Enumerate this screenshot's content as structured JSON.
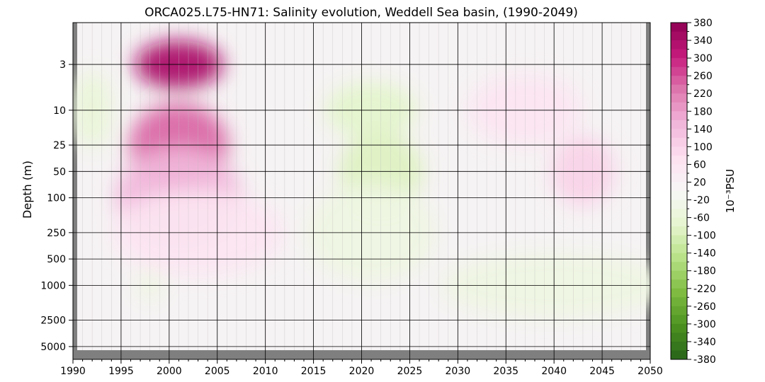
{
  "chart_data": {
    "type": "heatmap",
    "title": "ORCA025.L75-HN71: Salinity evolution, Weddell Sea basin, (1990-2049)",
    "ylabel": "Depth (m)",
    "xlabel": "",
    "xlim": [
      1990,
      2050
    ],
    "x_ticks": [
      1990,
      1995,
      2000,
      2005,
      2010,
      2015,
      2020,
      2025,
      2030,
      2035,
      2040,
      2045,
      2050
    ],
    "y_ticks": [
      3,
      10,
      25,
      50,
      100,
      250,
      500,
      1000,
      2500,
      5000
    ],
    "ylim": [
      1,
      7000
    ],
    "y_scale": "log",
    "y_inverted": true,
    "no_data_color": "#7f7f7f",
    "colorbar": {
      "label": "10⁻³PSU",
      "ticks": [
        380,
        340,
        300,
        260,
        220,
        180,
        140,
        100,
        60,
        20,
        -20,
        -60,
        -100,
        -140,
        -180,
        -220,
        -260,
        -300,
        -340,
        -380
      ],
      "range": [
        -380,
        380
      ],
      "colormap": "PiYG (green negative, magenta positive)",
      "color_negative": "#276419",
      "color_zero": "#f7f7f7",
      "color_positive": "#8e0152"
    },
    "anomalies_estimated": [
      {
        "year": 2001,
        "depth": 3,
        "value": 340
      },
      {
        "year": 2001,
        "depth": 25,
        "value": 240
      },
      {
        "year": 2001,
        "depth": 100,
        "value": 150
      },
      {
        "year": 2003,
        "depth": 250,
        "value": 60
      },
      {
        "year": 1992,
        "depth": 10,
        "value": -60
      },
      {
        "year": 2021,
        "depth": 10,
        "value": -80
      },
      {
        "year": 2022,
        "depth": 50,
        "value": -90
      },
      {
        "year": 2021,
        "depth": 250,
        "value": -40
      },
      {
        "year": 2037,
        "depth": 10,
        "value": 60
      },
      {
        "year": 2043,
        "depth": 50,
        "value": 100
      },
      {
        "year": 2040,
        "depth": 1000,
        "value": -40
      },
      {
        "year": 1998,
        "depth": 1000,
        "value": -40
      }
    ]
  }
}
